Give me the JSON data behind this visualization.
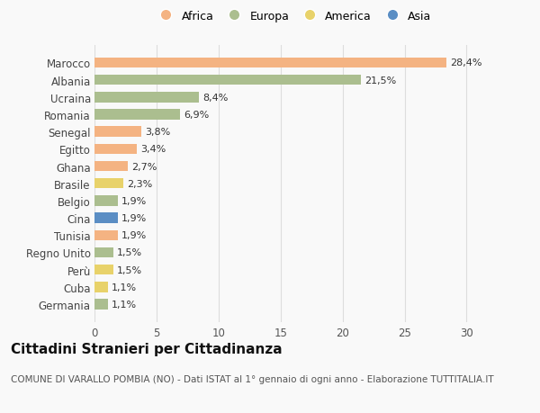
{
  "countries": [
    "Marocco",
    "Albania",
    "Ucraina",
    "Romania",
    "Senegal",
    "Egitto",
    "Ghana",
    "Brasile",
    "Belgio",
    "Cina",
    "Tunisia",
    "Regno Unito",
    "Perù",
    "Cuba",
    "Germania"
  ],
  "values": [
    28.4,
    21.5,
    8.4,
    6.9,
    3.8,
    3.4,
    2.7,
    2.3,
    1.9,
    1.9,
    1.9,
    1.5,
    1.5,
    1.1,
    1.1
  ],
  "labels": [
    "28,4%",
    "21,5%",
    "8,4%",
    "6,9%",
    "3,8%",
    "3,4%",
    "2,7%",
    "2,3%",
    "1,9%",
    "1,9%",
    "1,9%",
    "1,5%",
    "1,5%",
    "1,1%",
    "1,1%"
  ],
  "continents": [
    "Africa",
    "Europa",
    "Europa",
    "Europa",
    "Africa",
    "Africa",
    "Africa",
    "America",
    "Europa",
    "Asia",
    "Africa",
    "Europa",
    "America",
    "America",
    "Europa"
  ],
  "continent_colors": {
    "Africa": "#F4B382",
    "Europa": "#ABBE8F",
    "America": "#E8D26A",
    "Asia": "#5B8EC4"
  },
  "legend_order": [
    "Africa",
    "Europa",
    "America",
    "Asia"
  ],
  "title": "Cittadini Stranieri per Cittadinanza",
  "subtitle": "COMUNE DI VARALLO POMBIA (NO) - Dati ISTAT al 1° gennaio di ogni anno - Elaborazione TUTTITALIA.IT",
  "xlim": [
    0,
    32
  ],
  "xticks": [
    0,
    5,
    10,
    15,
    20,
    25,
    30
  ],
  "background_color": "#f9f9f9",
  "bar_height": 0.6,
  "label_fontsize": 8.0,
  "ytick_fontsize": 8.5,
  "xtick_fontsize": 8.5,
  "title_fontsize": 11,
  "subtitle_fontsize": 7.5
}
